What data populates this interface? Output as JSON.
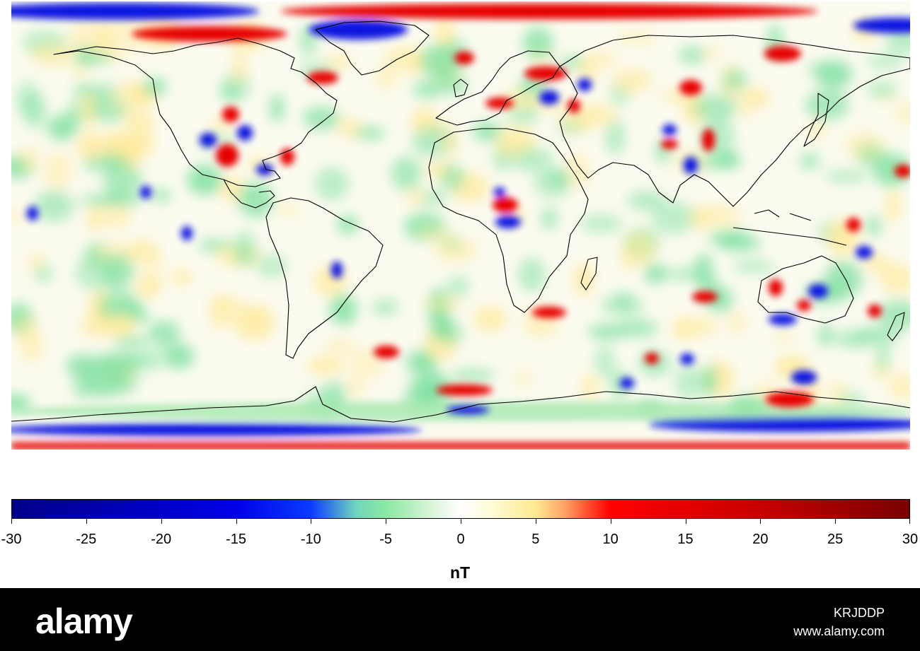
{
  "colors": {
    "ocean_base": "#fbfbf0",
    "positive": "#e60000",
    "negative": "#0a14e0",
    "mild_positive": "#ffe99a",
    "mild_negative": "#7fe0a0",
    "coast": "#000000",
    "footer_bg": "#000000",
    "footer_text": "#ffffff"
  },
  "colorbar": {
    "min": -30,
    "max": 30,
    "ticks": [
      "-30",
      "-25",
      "-20",
      "-15",
      "-10",
      "-5",
      "0",
      "5",
      "10",
      "15",
      "20",
      "25",
      "30"
    ],
    "unit": "nT",
    "stops": [
      {
        "value": -30,
        "color": "#00008b"
      },
      {
        "value": -15,
        "color": "#0000e6"
      },
      {
        "value": -10,
        "color": "#0a3cff"
      },
      {
        "value": -7,
        "color": "#6fd6c0"
      },
      {
        "value": -5,
        "color": "#8be8a0"
      },
      {
        "value": -2,
        "color": "#d8f5d8"
      },
      {
        "value": 0,
        "color": "#ffffff"
      },
      {
        "value": 2,
        "color": "#fffbd8"
      },
      {
        "value": 5,
        "color": "#ffe990"
      },
      {
        "value": 7,
        "color": "#ffa060"
      },
      {
        "value": 10,
        "color": "#ff0000"
      },
      {
        "value": 20,
        "color": "#c80000"
      },
      {
        "value": 30,
        "color": "#7a0000"
      }
    ]
  },
  "footer": {
    "logo": "alamy",
    "image_id": "KRJDDP",
    "url": "www.alamy.com"
  }
}
